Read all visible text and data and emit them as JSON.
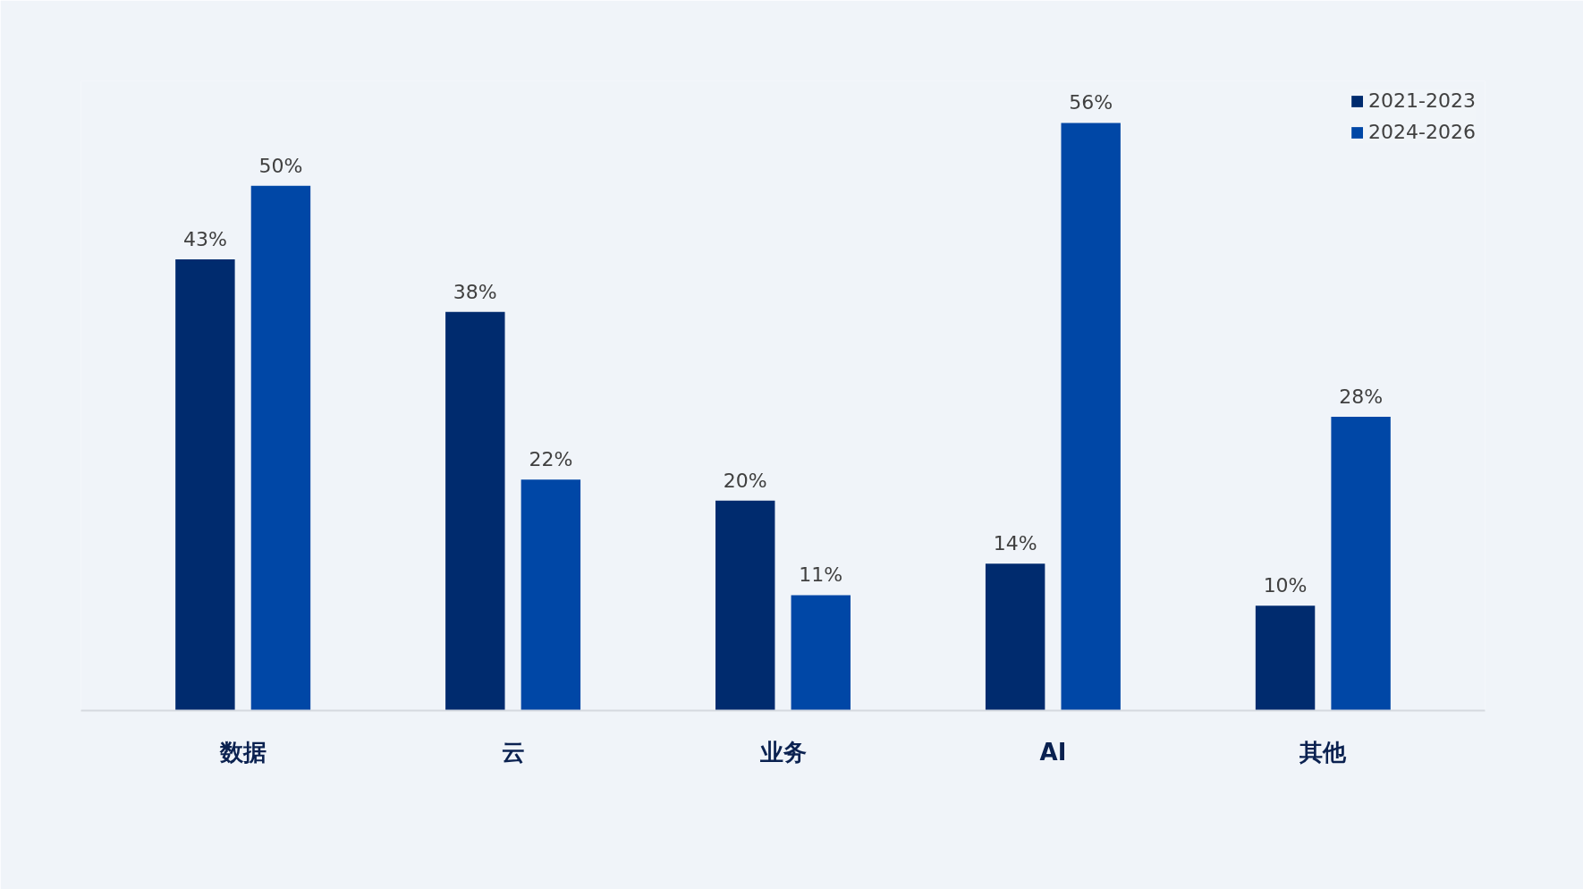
{
  "chart_data": {
    "type": "bar",
    "categories": [
      "数据",
      "云",
      "业务",
      "AI",
      "其他"
    ],
    "series": [
      {
        "name": "2021-2023",
        "color": "#002b6e",
        "values": [
          43,
          38,
          20,
          14,
          10
        ],
        "value_labels": [
          "43%",
          "38%",
          "20%",
          "14%",
          "10%"
        ]
      },
      {
        "name": "2024-2026",
        "color": "#0047a6",
        "values": [
          50,
          22,
          11,
          56,
          28
        ],
        "value_labels": [
          "50%",
          "22%",
          "11%",
          "56%",
          "28%"
        ]
      }
    ],
    "ylim": [
      0,
      60
    ],
    "tick_labels": "x",
    "grid": false,
    "legend": "top right"
  }
}
